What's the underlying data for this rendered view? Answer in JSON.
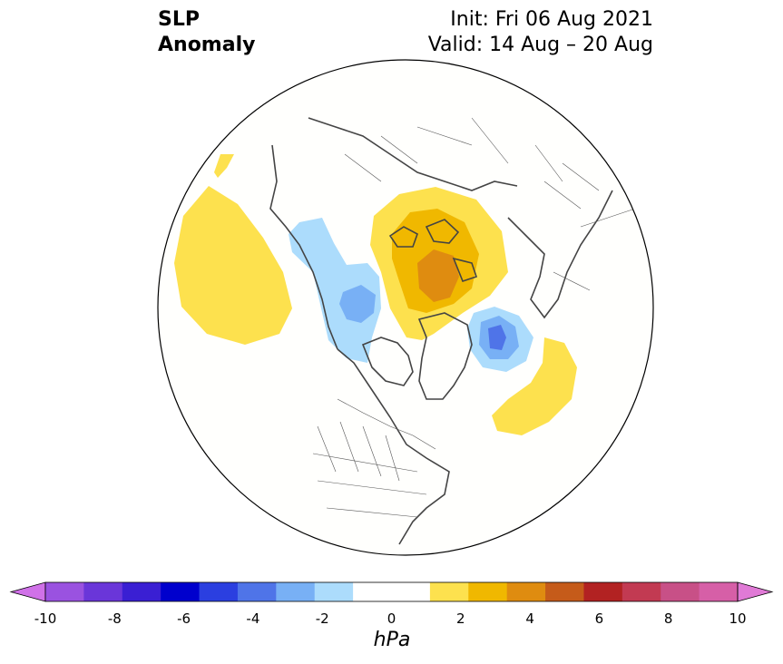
{
  "header": {
    "variable_line1": "SLP",
    "variable_line2": "Anomaly",
    "init_text": "Init: Fri 06 Aug 2021",
    "valid_text": "Valid: 14 Aug – 20 Aug"
  },
  "map": {
    "projection": "north-polar-stereographic",
    "anomaly_regions": [
      {
        "name": "north-pacific-high",
        "level": 1
      },
      {
        "name": "greenland-low-outer",
        "level": -1
      },
      {
        "name": "greenland-low-inner",
        "level": -2
      },
      {
        "name": "arctic-high-outer",
        "level": 1
      },
      {
        "name": "arctic-high-mid",
        "level": 2
      },
      {
        "name": "arctic-high-core",
        "level": 3
      },
      {
        "name": "scandinavia-low-outer",
        "level": -1
      },
      {
        "name": "scandinavia-low-mid",
        "level": -2
      },
      {
        "name": "scandinavia-low-core",
        "level": -3
      },
      {
        "name": "north-atlantic-high",
        "level": 1
      },
      {
        "name": "bering-high",
        "level": 1
      }
    ]
  },
  "colorbar": {
    "unit": "hPa",
    "tick_labels": [
      "-10",
      "-8",
      "-6",
      "-4",
      "-2",
      "0",
      "2",
      "4",
      "6",
      "8",
      "10"
    ],
    "colors": [
      "#d071e8",
      "#9a52e0",
      "#6a36d9",
      "#3a1fd3",
      "#0000cd",
      "#2b3fe0",
      "#4f74e8",
      "#78b0f5",
      "#acdcfc",
      "#ffffff",
      "#ffffff",
      "#fde14e",
      "#f0b800",
      "#df8c10",
      "#c55b1a",
      "#b22222",
      "#c23a52",
      "#c85087",
      "#d65fa7",
      "#e07ad6"
    ]
  }
}
